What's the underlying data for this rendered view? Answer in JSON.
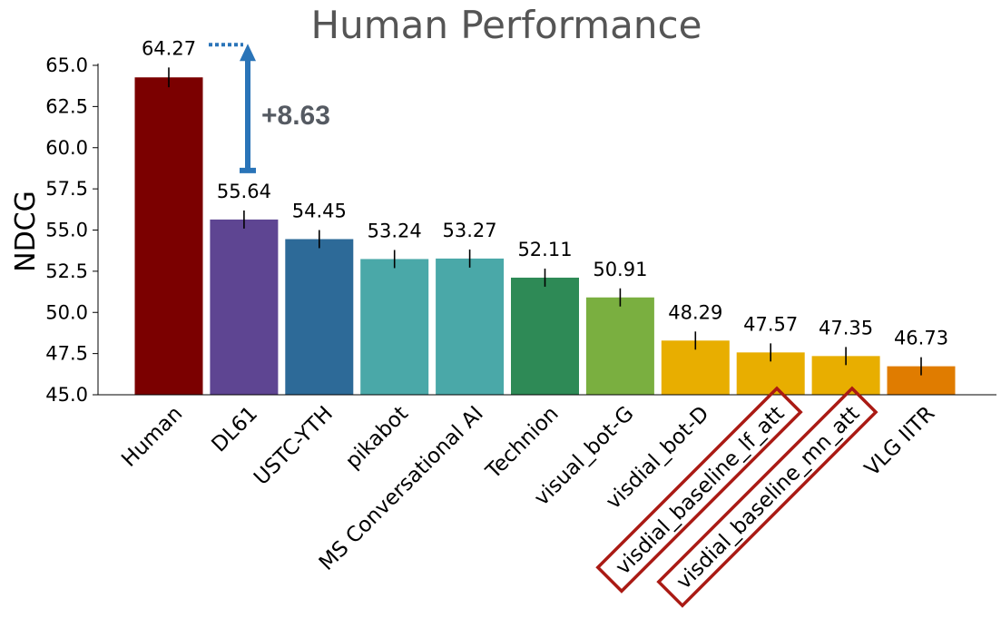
{
  "chart_data": {
    "type": "bar",
    "title": "Human Performance",
    "ylabel": "NDCG",
    "xlabel": "",
    "ylim": [
      45.0,
      65.0
    ],
    "yticks": [
      "45.0",
      "47.5",
      "50.0",
      "52.5",
      "55.0",
      "57.5",
      "60.0",
      "62.5",
      "65.0"
    ],
    "categories": [
      "Human",
      "DL61",
      "USTC-YTH",
      "pikabot",
      "MS Conversational AI",
      "Technion",
      "visual_bot-G",
      "visdial_bot-D",
      "visdial_baseline_lf_att",
      "visdial_baseline_mn_att",
      "VLG IITR"
    ],
    "values": [
      64.27,
      55.64,
      54.45,
      53.24,
      53.27,
      52.11,
      50.91,
      48.29,
      47.57,
      47.35,
      46.73
    ],
    "value_labels": [
      "64.27",
      "55.64",
      "54.45",
      "53.24",
      "53.27",
      "52.11",
      "50.91",
      "48.29",
      "47.57",
      "47.35",
      "46.73"
    ],
    "error": [
      0.6,
      0.55,
      0.55,
      0.55,
      0.55,
      0.55,
      0.55,
      0.55,
      0.55,
      0.55,
      0.55
    ],
    "colors": [
      "#7b0000",
      "#5e4592",
      "#2d6a98",
      "#4aa8a8",
      "#4aa8a8",
      "#2e8a56",
      "#7aaf40",
      "#e8ae00",
      "#e8ae00",
      "#e8ae00",
      "#e07c00"
    ],
    "highlighted": [
      "visdial_baseline_lf_att",
      "visdial_baseline_mn_att"
    ],
    "highlight_color": "#aa1a14",
    "annotation": {
      "text": "+8.63",
      "from": 55.64,
      "to": 64.27,
      "color": "#2a74b8"
    },
    "grid": false
  }
}
